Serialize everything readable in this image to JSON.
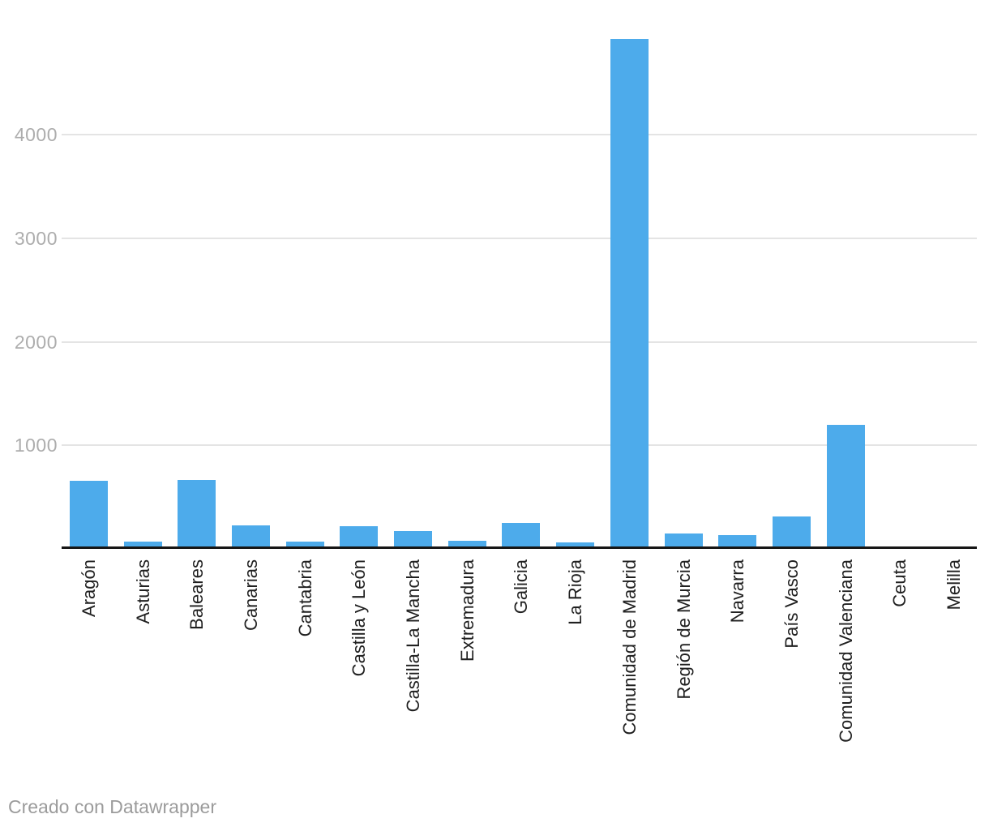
{
  "chart_data": {
    "type": "bar",
    "title": "",
    "xlabel": "",
    "ylabel": "",
    "categories": [
      "Aragón",
      "Asturias",
      "Baleares",
      "Canarias",
      "Cantabria",
      "Castilla y León",
      "Castilla-La Mancha",
      "Extremadura",
      "Galicia",
      "La Rioja",
      "Comunidad de Madrid",
      "Región de Murcia",
      "Navarra",
      "País Vasco",
      "Comunidad Valenciana",
      "Ceuta",
      "Melilla"
    ],
    "values": [
      655,
      70,
      665,
      225,
      70,
      220,
      170,
      80,
      250,
      60,
      4920,
      145,
      130,
      310,
      1200,
      0,
      0
    ],
    "yticks": [
      1000,
      2000,
      3000,
      4000
    ],
    "ytick_labels": [
      "1000",
      "2000",
      "3000",
      "4000"
    ],
    "ylim": [
      0,
      4925
    ],
    "grid": "horizontal-only",
    "legend": "none",
    "bar_orientation": "vertical",
    "x_label_rotation": "90deg-bottom-to-top"
  },
  "colors": {
    "bar": "#4dabeb",
    "gridline": "#e4e4e4",
    "axis_line": "#161616",
    "ytick_text": "#adadad",
    "xtick_text": "#202020",
    "credit_text": "#9b9b9b",
    "background": "#ffffff"
  },
  "footer": {
    "credit": "Creado con Datawrapper"
  }
}
